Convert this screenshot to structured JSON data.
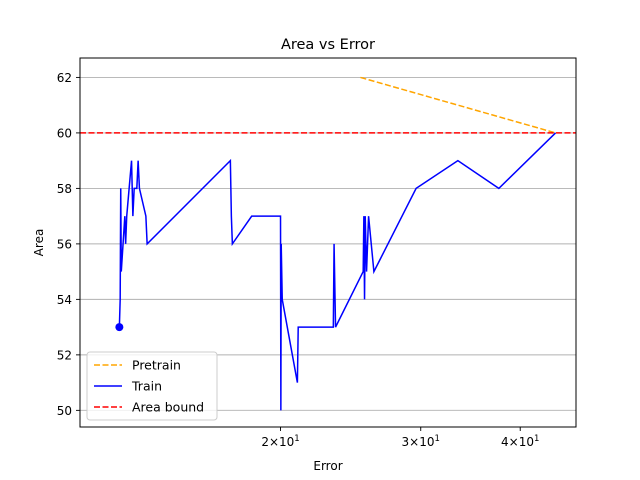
{
  "chart_data": {
    "type": "line",
    "title": "Area vs Error",
    "xlabel": "Error",
    "ylabel": "Area",
    "xscale": "log",
    "xlim": [
      11.2,
      47
    ],
    "ylim": [
      49.4,
      62.7
    ],
    "xticks": [
      {
        "value": 20,
        "label": "2×10^1"
      },
      {
        "value": 30,
        "label": "3×10^1"
      },
      {
        "value": 40,
        "label": "4×10^1"
      }
    ],
    "yticks": [
      50,
      52,
      54,
      56,
      58,
      60,
      62
    ],
    "grid": "horizontal",
    "legend_position": "lower-left",
    "series": [
      {
        "name": "Pretrain",
        "color": "#ffa500",
        "style": "dashed",
        "points": [
          [
            25.2,
            62
          ],
          [
            44.3,
            60
          ]
        ]
      },
      {
        "name": "Train",
        "color": "#0000ff",
        "style": "solid",
        "points": [
          [
            12.55,
            53
          ],
          [
            12.58,
            54
          ],
          [
            12.6,
            58
          ],
          [
            12.62,
            55
          ],
          [
            12.75,
            57
          ],
          [
            12.78,
            56
          ],
          [
            12.82,
            57
          ],
          [
            13.0,
            59
          ],
          [
            13.05,
            57
          ],
          [
            13.1,
            58
          ],
          [
            13.2,
            58
          ],
          [
            13.25,
            59
          ],
          [
            13.3,
            58
          ],
          [
            13.55,
            57
          ],
          [
            13.6,
            56
          ],
          [
            17.3,
            59
          ],
          [
            17.35,
            57
          ],
          [
            17.4,
            56
          ],
          [
            18.4,
            57
          ],
          [
            20.0,
            57
          ],
          [
            20.02,
            50
          ],
          [
            20.04,
            56
          ],
          [
            20.1,
            54
          ],
          [
            21.0,
            51
          ],
          [
            21.05,
            53
          ],
          [
            23.3,
            53
          ],
          [
            23.35,
            56
          ],
          [
            23.45,
            53
          ],
          [
            25.4,
            55
          ],
          [
            25.45,
            57
          ],
          [
            25.5,
            54
          ],
          [
            25.55,
            57
          ],
          [
            25.65,
            55
          ],
          [
            25.8,
            57
          ],
          [
            26.2,
            55
          ],
          [
            29.6,
            58
          ],
          [
            33.4,
            59
          ],
          [
            37.6,
            58
          ],
          [
            44.3,
            60
          ]
        ],
        "start_marker": [
          12.55,
          53
        ]
      },
      {
        "name": "Area bound",
        "color": "#ff0000",
        "style": "dashed",
        "hline": 60
      }
    ]
  }
}
